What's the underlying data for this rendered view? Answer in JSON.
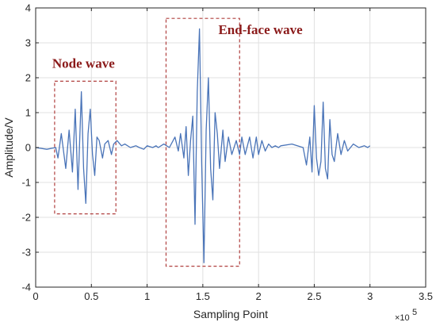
{
  "chart_data": {
    "type": "line",
    "xlabel": "Sampling Point",
    "ylabel": "Amplitude/V",
    "x_exponent_label": "×10",
    "x_exponent_power": "5",
    "xlim": [
      0,
      3.5
    ],
    "ylim": [
      -4,
      4
    ],
    "xticks": [
      0,
      0.5,
      1,
      1.5,
      2,
      2.5,
      3,
      3.5
    ],
    "yticks": [
      -4,
      -3,
      -2,
      -1,
      0,
      1,
      2,
      3,
      4
    ],
    "xtick_labels": [
      "0",
      "0.5",
      "1",
      "1.5",
      "2",
      "2.5",
      "3",
      "3.5"
    ],
    "ytick_labels": [
      "-4",
      "-3",
      "-2",
      "-1",
      "0",
      "1",
      "2",
      "3",
      "4"
    ],
    "grid": true,
    "line_color": "#4a74b8",
    "annotation_color": "#8b1a1a",
    "box_color": "#b0403f",
    "series": [
      {
        "x": [
          0.0,
          0.1,
          0.18,
          0.2,
          0.23,
          0.27,
          0.3,
          0.33,
          0.355,
          0.38,
          0.41,
          0.43,
          0.45,
          0.47,
          0.49,
          0.51,
          0.53,
          0.55,
          0.57,
          0.6,
          0.62,
          0.65,
          0.68,
          0.7,
          0.73,
          0.77,
          0.8,
          0.85,
          0.9,
          0.93,
          0.97,
          1.0,
          1.05,
          1.08,
          1.1,
          1.15,
          1.2,
          1.25,
          1.28,
          1.3,
          1.33,
          1.35,
          1.37,
          1.39,
          1.41,
          1.43,
          1.45,
          1.47,
          1.49,
          1.51,
          1.53,
          1.55,
          1.57,
          1.59,
          1.61,
          1.63,
          1.65,
          1.68,
          1.7,
          1.73,
          1.76,
          1.8,
          1.83,
          1.85,
          1.88,
          1.92,
          1.95,
          1.98,
          2.0,
          2.03,
          2.06,
          2.09,
          2.12,
          2.15,
          2.18,
          2.2,
          2.3,
          2.4,
          2.43,
          2.46,
          2.48,
          2.5,
          2.52,
          2.54,
          2.56,
          2.58,
          2.6,
          2.62,
          2.64,
          2.66,
          2.68,
          2.71,
          2.74,
          2.77,
          2.8,
          2.85,
          2.9,
          2.95,
          2.98,
          3.0
        ],
        "y": [
          0.0,
          -0.05,
          0.0,
          -0.3,
          0.4,
          -0.6,
          0.5,
          -0.7,
          1.1,
          -1.2,
          1.6,
          -0.6,
          -1.6,
          0.4,
          1.1,
          -0.2,
          -0.8,
          0.3,
          0.2,
          -0.3,
          0.1,
          0.2,
          -0.2,
          0.1,
          0.2,
          0.05,
          0.1,
          0.0,
          0.05,
          0.0,
          -0.05,
          0.05,
          0.0,
          0.05,
          0.0,
          0.1,
          0.0,
          0.3,
          -0.1,
          0.4,
          -0.3,
          0.6,
          -0.8,
          0.2,
          0.9,
          -2.2,
          1.6,
          3.4,
          -0.5,
          -3.3,
          0.5,
          2.0,
          -0.6,
          -1.5,
          1.0,
          0.4,
          -0.6,
          0.5,
          -0.4,
          0.3,
          -0.2,
          0.2,
          -0.2,
          0.3,
          -0.2,
          0.3,
          -0.3,
          0.3,
          -0.2,
          0.2,
          -0.1,
          0.1,
          0.0,
          0.05,
          0.0,
          0.05,
          0.1,
          0.0,
          -0.5,
          0.3,
          -0.7,
          1.2,
          -0.3,
          -0.8,
          -0.4,
          1.3,
          -0.6,
          -0.9,
          0.8,
          -0.2,
          -0.4,
          0.4,
          -0.2,
          0.2,
          -0.1,
          0.1,
          0.0,
          0.05,
          0.0,
          0.05
        ]
      }
    ],
    "annotations": [
      {
        "label": "Node wave",
        "x_range": [
          0.17,
          0.72
        ],
        "y_range": [
          -1.9,
          1.9
        ]
      },
      {
        "label": "End-face wave",
        "x_range": [
          1.17,
          1.83
        ],
        "y_range": [
          -3.4,
          3.7
        ]
      }
    ]
  }
}
